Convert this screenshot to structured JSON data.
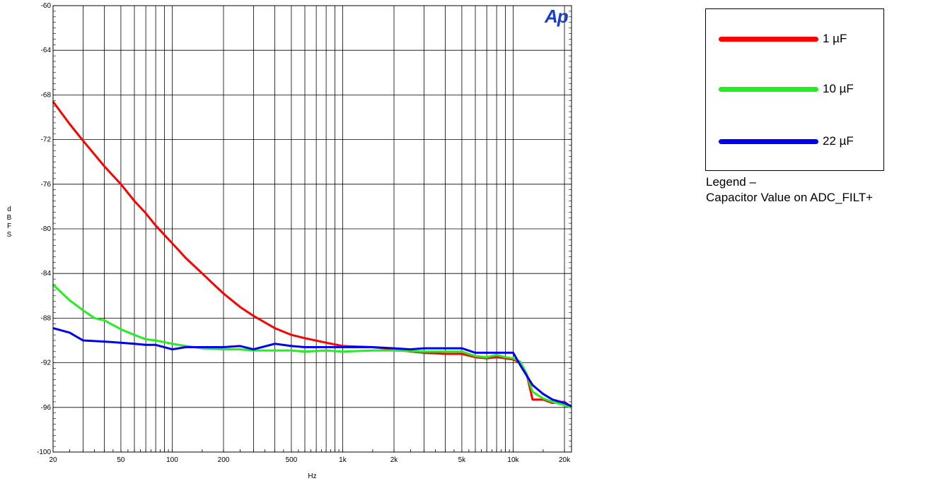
{
  "logo": {
    "text": "Ap",
    "color": "#1a3ec8"
  },
  "legend": {
    "items": [
      {
        "label": "1 µF",
        "color": "#ff0000"
      },
      {
        "label": "10 µF",
        "color": "#22ee22"
      },
      {
        "label": "22 µF",
        "color": "#0000ee"
      }
    ],
    "caption_line1": "Legend –",
    "caption_line2": "Capacitor Value on ADC_FILT+"
  },
  "chart_data": {
    "type": "line",
    "title": "",
    "xlabel": "Hz",
    "ylabel": "dBFS",
    "x_scale": "log",
    "xlim": [
      20,
      22000
    ],
    "ylim": [
      -100,
      -60
    ],
    "grid": true,
    "legend_position": "right, outside plot",
    "x_ticks": [
      {
        "value": 20,
        "label": "20"
      },
      {
        "value": 50,
        "label": "50"
      },
      {
        "value": 100,
        "label": "100"
      },
      {
        "value": 200,
        "label": "200"
      },
      {
        "value": 500,
        "label": "500"
      },
      {
        "value": 1000,
        "label": "1k"
      },
      {
        "value": 2000,
        "label": "2k"
      },
      {
        "value": 5000,
        "label": "5k"
      },
      {
        "value": 10000,
        "label": "10k"
      },
      {
        "value": 20000,
        "label": "20k"
      }
    ],
    "y_ticks": [
      -100,
      -96,
      -92,
      -88,
      -84,
      -80,
      -76,
      -72,
      -68,
      -64,
      -60
    ],
    "series": [
      {
        "name": "1 µF",
        "color": "#ff0000",
        "points": [
          [
            20,
            -68.6
          ],
          [
            25,
            -70.6
          ],
          [
            30,
            -72.1
          ],
          [
            40,
            -74.4
          ],
          [
            50,
            -76.0
          ],
          [
            60,
            -77.5
          ],
          [
            70,
            -78.6
          ],
          [
            80,
            -79.7
          ],
          [
            100,
            -81.3
          ],
          [
            120,
            -82.6
          ],
          [
            150,
            -84.0
          ],
          [
            200,
            -85.8
          ],
          [
            250,
            -87.0
          ],
          [
            300,
            -87.8
          ],
          [
            400,
            -88.9
          ],
          [
            500,
            -89.5
          ],
          [
            600,
            -89.8
          ],
          [
            800,
            -90.2
          ],
          [
            1000,
            -90.5
          ],
          [
            1500,
            -90.6
          ],
          [
            2000,
            -90.8
          ],
          [
            2500,
            -91.0
          ],
          [
            3000,
            -91.1
          ],
          [
            4000,
            -91.2
          ],
          [
            5000,
            -91.2
          ],
          [
            6000,
            -91.5
          ],
          [
            7000,
            -91.6
          ],
          [
            8000,
            -91.5
          ],
          [
            9000,
            -91.6
          ],
          [
            10000,
            -91.7
          ],
          [
            11000,
            -92.0
          ],
          [
            12000,
            -93.0
          ],
          [
            13000,
            -95.3
          ],
          [
            15000,
            -95.3
          ],
          [
            17000,
            -95.6
          ],
          [
            20000,
            -95.5
          ],
          [
            22000,
            -96.0
          ]
        ]
      },
      {
        "name": "10 µF",
        "color": "#22ee22",
        "points": [
          [
            20,
            -85.0
          ],
          [
            25,
            -86.4
          ],
          [
            30,
            -87.3
          ],
          [
            35,
            -88.0
          ],
          [
            40,
            -88.2
          ],
          [
            50,
            -89.0
          ],
          [
            60,
            -89.5
          ],
          [
            70,
            -89.9
          ],
          [
            80,
            -90.0
          ],
          [
            100,
            -90.3
          ],
          [
            120,
            -90.5
          ],
          [
            150,
            -90.7
          ],
          [
            200,
            -90.8
          ],
          [
            250,
            -90.8
          ],
          [
            300,
            -90.9
          ],
          [
            400,
            -90.9
          ],
          [
            500,
            -90.9
          ],
          [
            600,
            -91.0
          ],
          [
            800,
            -90.9
          ],
          [
            1000,
            -91.0
          ],
          [
            1500,
            -90.9
          ],
          [
            2000,
            -90.9
          ],
          [
            3000,
            -91.0
          ],
          [
            4000,
            -91.0
          ],
          [
            5000,
            -91.0
          ],
          [
            6000,
            -91.4
          ],
          [
            7000,
            -91.5
          ],
          [
            8000,
            -91.3
          ],
          [
            9000,
            -91.5
          ],
          [
            10000,
            -91.6
          ],
          [
            11000,
            -91.9
          ],
          [
            12000,
            -93.0
          ],
          [
            13000,
            -94.6
          ],
          [
            15000,
            -95.2
          ],
          [
            17000,
            -95.5
          ],
          [
            20000,
            -95.8
          ],
          [
            22000,
            -96.0
          ]
        ]
      },
      {
        "name": "22 µF",
        "color": "#0000ee",
        "points": [
          [
            20,
            -88.9
          ],
          [
            25,
            -89.3
          ],
          [
            30,
            -90.0
          ],
          [
            40,
            -90.1
          ],
          [
            50,
            -90.2
          ],
          [
            60,
            -90.3
          ],
          [
            70,
            -90.4
          ],
          [
            80,
            -90.4
          ],
          [
            100,
            -90.8
          ],
          [
            120,
            -90.6
          ],
          [
            150,
            -90.6
          ],
          [
            200,
            -90.6
          ],
          [
            250,
            -90.5
          ],
          [
            300,
            -90.8
          ],
          [
            400,
            -90.3
          ],
          [
            500,
            -90.5
          ],
          [
            600,
            -90.6
          ],
          [
            800,
            -90.6
          ],
          [
            1000,
            -90.6
          ],
          [
            1500,
            -90.6
          ],
          [
            2000,
            -90.7
          ],
          [
            2500,
            -90.8
          ],
          [
            3000,
            -90.7
          ],
          [
            4000,
            -90.7
          ],
          [
            5000,
            -90.7
          ],
          [
            6000,
            -91.1
          ],
          [
            7000,
            -91.1
          ],
          [
            8000,
            -91.1
          ],
          [
            9000,
            -91.1
          ],
          [
            10000,
            -91.1
          ],
          [
            11000,
            -92.2
          ],
          [
            13000,
            -94.0
          ],
          [
            15000,
            -94.8
          ],
          [
            17000,
            -95.3
          ],
          [
            20000,
            -95.6
          ],
          [
            22000,
            -95.9
          ]
        ]
      }
    ]
  }
}
